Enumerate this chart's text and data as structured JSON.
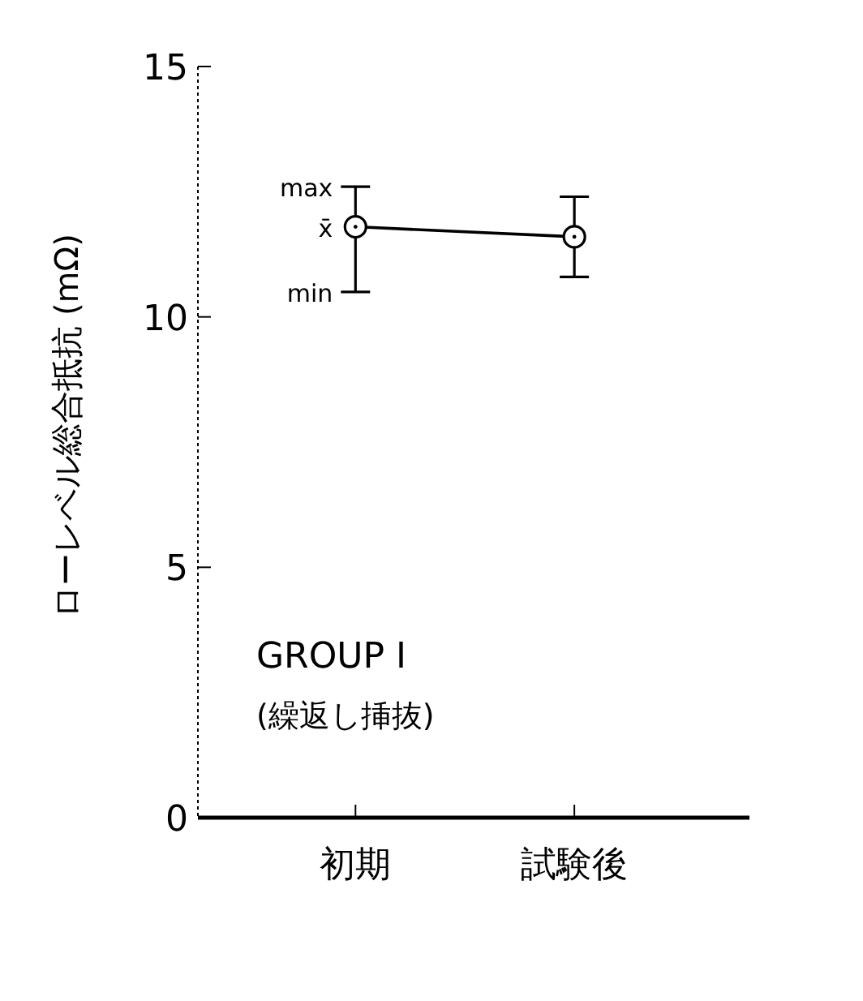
{
  "chart_data": {
    "type": "line",
    "ylabel": "ローレベル総合抵抗 (mΩ)",
    "categories": [
      "初期",
      "試験後"
    ],
    "series": [
      {
        "color": "#000000",
        "values": [
          11.8,
          11.6
        ],
        "errors": [
          [
            10.5,
            12.6
          ],
          [
            10.8,
            12.4
          ]
        ]
      }
    ],
    "ylim": [
      0,
      15
    ],
    "yticks": [
      0,
      5,
      10,
      15
    ],
    "grid": false,
    "marker": "circle",
    "line_style": "solid",
    "annotations": [
      {
        "text": "max",
        "x": "初期",
        "y": 12.6
      },
      {
        "text": "x̄",
        "x": "初期",
        "y": 11.8
      },
      {
        "text": "min",
        "x": "初期",
        "y": 10.5
      },
      "GROUP I",
      "(繰返し挿抜)"
    ]
  }
}
